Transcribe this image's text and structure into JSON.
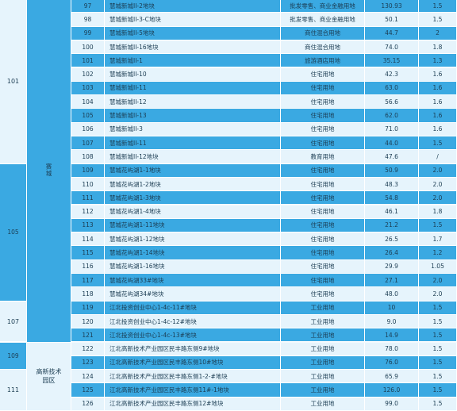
{
  "table": {
    "group_col1": [
      {
        "label": "101"
      },
      {
        "label": "105"
      },
      {
        "label": "107"
      },
      {
        "label": "109"
      },
      {
        "label": "111"
      }
    ],
    "group_col2": [
      {
        "label": "赛城"
      },
      {
        "label": "高新技术\n园区"
      }
    ],
    "rows": [
      {
        "no": "97",
        "name": "慧城新城II-2地块",
        "use": "批发零售、商业金融用地",
        "area": "130.93",
        "ratio": "1.5"
      },
      {
        "no": "98",
        "name": "慧城新城II-3-C地块",
        "use": "批发零售、商业金融用地",
        "area": "50.1",
        "ratio": "1.5"
      },
      {
        "no": "99",
        "name": "慧城新城II-5地块",
        "use": "商住混合用地",
        "area": "44.7",
        "ratio": "2"
      },
      {
        "no": "100",
        "name": "慧城新城II-16地块",
        "use": "商住混合用地",
        "area": "74.0",
        "ratio": "1.8"
      },
      {
        "no": "101",
        "name": "慧城新城II-1",
        "use": "旅游酒店用地",
        "area": "35.15",
        "ratio": "1.3"
      },
      {
        "no": "102",
        "name": "慧城新城II-10",
        "use": "住宅用地",
        "area": "42.3",
        "ratio": "1.6"
      },
      {
        "no": "103",
        "name": "慧城新城II-11",
        "use": "住宅用地",
        "area": "63.0",
        "ratio": "1.6"
      },
      {
        "no": "104",
        "name": "慧城新城II-12",
        "use": "住宅用地",
        "area": "56.6",
        "ratio": "1.6"
      },
      {
        "no": "105",
        "name": "慧城新城II-13",
        "use": "住宅用地",
        "area": "62.0",
        "ratio": "1.6"
      },
      {
        "no": "106",
        "name": "慧城新城II-3",
        "use": "住宅用地",
        "area": "71.0",
        "ratio": "1.6"
      },
      {
        "no": "107",
        "name": "慧城新城II-11",
        "use": "住宅用地",
        "area": "44.0",
        "ratio": "1.5"
      },
      {
        "no": "108",
        "name": "慧城新城II-12地块",
        "use": "教育用地",
        "area": "47.6",
        "ratio": "/"
      },
      {
        "no": "109",
        "name": "慧城花屿湖1-1地块",
        "use": "住宅用地",
        "area": "50.9",
        "ratio": "2.0"
      },
      {
        "no": "110",
        "name": "慧城花屿湖1-2地块",
        "use": "住宅用地",
        "area": "48.3",
        "ratio": "2.0"
      },
      {
        "no": "111",
        "name": "慧城花屿湖1-3地块",
        "use": "住宅用地",
        "area": "54.8",
        "ratio": "2.0"
      },
      {
        "no": "112",
        "name": "慧城花屿湖1-4地块",
        "use": "住宅用地",
        "area": "46.1",
        "ratio": "1.8"
      },
      {
        "no": "113",
        "name": "慧城花屿湖1-11地块",
        "use": "住宅用地",
        "area": "21.2",
        "ratio": "1.5"
      },
      {
        "no": "114",
        "name": "慧城花屿湖1-12地块",
        "use": "住宅用地",
        "area": "26.5",
        "ratio": "1.7"
      },
      {
        "no": "115",
        "name": "慧城花屿湖1-14地块",
        "use": "住宅用地",
        "area": "26.4",
        "ratio": "1.2"
      },
      {
        "no": "116",
        "name": "慧城花屿湖1-16地块",
        "use": "住宅用地",
        "area": "29.9",
        "ratio": "1.05"
      },
      {
        "no": "117",
        "name": "慧城花屿湖33#地块",
        "use": "住宅用地",
        "area": "27.1",
        "ratio": "2.0"
      },
      {
        "no": "118",
        "name": "慧城花屿湖34#地块",
        "use": "住宅用地",
        "area": "48.0",
        "ratio": "2.0"
      },
      {
        "no": "119",
        "name": "江北投资创业中心1-4c-11#地块",
        "use": "工业用地",
        "area": "10",
        "ratio": "1.5"
      },
      {
        "no": "120",
        "name": "江北投资创业中心1-4c-12#地块",
        "use": "工业用地",
        "area": "9.0",
        "ratio": "1.5"
      },
      {
        "no": "121",
        "name": "江北投资创业中心1-4c-13#地块",
        "use": "工业用地",
        "area": "14.9",
        "ratio": "1.5"
      },
      {
        "no": "122",
        "name": "江北高新技术产业园区民丰路东侧9#地块",
        "use": "工业用地",
        "area": "78.0",
        "ratio": "1.5"
      },
      {
        "no": "123",
        "name": "江北高新技术产业园区民丰路东侧10#地块",
        "use": "工业用地",
        "area": "76.0",
        "ratio": "1.5"
      },
      {
        "no": "124",
        "name": "江北高新技术产业园区民丰路东侧1-2-#地块",
        "use": "工业用地",
        "area": "65.9",
        "ratio": "1.5"
      },
      {
        "no": "125",
        "name": "江北高新技术产业园区民丰路东侧11#-1地块",
        "use": "工业用地",
        "area": "126.0",
        "ratio": "1.5"
      },
      {
        "no": "126",
        "name": "江北高新技术产业园区民丰路东侧12#地块",
        "use": "工业用地",
        "area": "99.0",
        "ratio": "1.5"
      }
    ]
  },
  "colors": {
    "row_blue": "#3aa9e2",
    "row_light": "#e6f4fc",
    "text": "#1b3c52"
  }
}
